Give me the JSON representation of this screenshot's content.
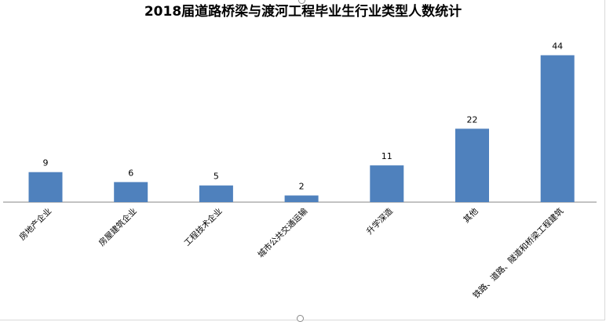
{
  "chart_data": {
    "type": "bar",
    "title": "2018届道路桥梁与渡河工程毕业生行业类型人数统计",
    "categories": [
      "房地产企业",
      "房屋建筑企业",
      "工程技术企业",
      "城市公共交通运输",
      "升学深造",
      "其他",
      "铁路、道路、隧道和桥梁工程建筑"
    ],
    "values": [
      9,
      6,
      5,
      2,
      11,
      22,
      44
    ],
    "ylim": [
      0,
      46
    ],
    "grid": false,
    "legend": "none",
    "bar_color": "#4f81bd",
    "xlabel": "",
    "ylabel": ""
  }
}
